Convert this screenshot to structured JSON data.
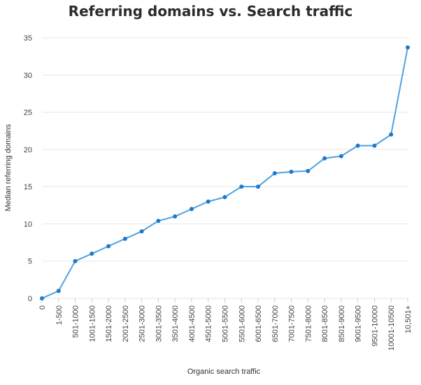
{
  "chart_data": {
    "type": "line",
    "title": "Referring domains vs. Search traffic",
    "xlabel": "Organic search traffic",
    "ylabel": "Median referring domains",
    "categories": [
      "0",
      "1-500",
      "501-1000",
      "1001-1500",
      "1501-2000",
      "2001-2500",
      "2501-3000",
      "3001-3500",
      "3501-4000",
      "4001-4500",
      "4501-5000",
      "5001-5500",
      "5501-6000",
      "6001-6500",
      "6501-7000",
      "7001-7500",
      "7501-8000",
      "8001-8500",
      "8501-9000",
      "9001-9500",
      "9501-10000",
      "10001-10500",
      "10,501+"
    ],
    "series": [
      {
        "values": [
          0,
          1,
          5,
          6,
          7,
          8,
          9,
          10.4,
          11,
          12,
          13,
          13.6,
          15,
          15,
          16.8,
          17,
          17.1,
          18.8,
          19.1,
          20.5,
          20.5,
          22,
          33.7
        ]
      }
    ],
    "ylim": [
      0,
      35
    ],
    "yticks": [
      0,
      5,
      10,
      15,
      20,
      25,
      30,
      35
    ],
    "grid": true,
    "line_color": "#4ea3e0",
    "marker_color": "#1f78c8",
    "grid_color": "#e6e6e6"
  }
}
